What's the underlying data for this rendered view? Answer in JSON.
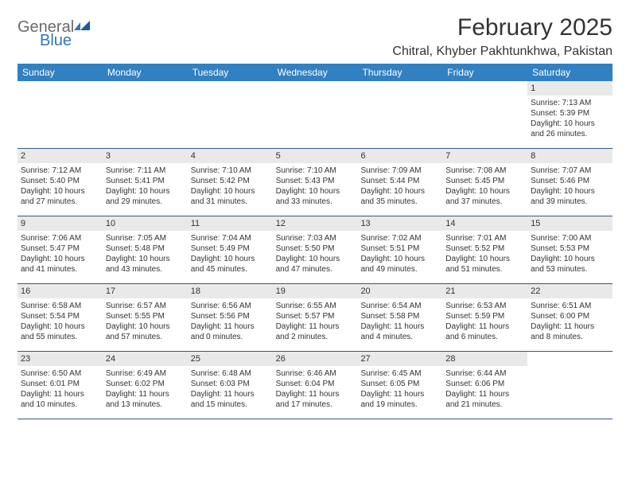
{
  "brand": {
    "name_part1": "General",
    "name_part2": "Blue"
  },
  "title": "February 2025",
  "location": "Chitral, Khyber Pakhtunkhwa, Pakistan",
  "colors": {
    "header_bg": "#3180c2",
    "header_text": "#ffffff",
    "daynum_bg": "#e9e9e9",
    "week_border": "#2f5b86",
    "text": "#333333",
    "logo_gray": "#6a6a6a",
    "logo_blue": "#2f77bb"
  },
  "days_of_week": [
    "Sunday",
    "Monday",
    "Tuesday",
    "Wednesday",
    "Thursday",
    "Friday",
    "Saturday"
  ],
  "weeks": [
    [
      {
        "n": "",
        "sr": "",
        "ss": "",
        "dl": ""
      },
      {
        "n": "",
        "sr": "",
        "ss": "",
        "dl": ""
      },
      {
        "n": "",
        "sr": "",
        "ss": "",
        "dl": ""
      },
      {
        "n": "",
        "sr": "",
        "ss": "",
        "dl": ""
      },
      {
        "n": "",
        "sr": "",
        "ss": "",
        "dl": ""
      },
      {
        "n": "",
        "sr": "",
        "ss": "",
        "dl": ""
      },
      {
        "n": "1",
        "sr": "Sunrise: 7:13 AM",
        "ss": "Sunset: 5:39 PM",
        "dl": "Daylight: 10 hours and 26 minutes."
      }
    ],
    [
      {
        "n": "2",
        "sr": "Sunrise: 7:12 AM",
        "ss": "Sunset: 5:40 PM",
        "dl": "Daylight: 10 hours and 27 minutes."
      },
      {
        "n": "3",
        "sr": "Sunrise: 7:11 AM",
        "ss": "Sunset: 5:41 PM",
        "dl": "Daylight: 10 hours and 29 minutes."
      },
      {
        "n": "4",
        "sr": "Sunrise: 7:10 AM",
        "ss": "Sunset: 5:42 PM",
        "dl": "Daylight: 10 hours and 31 minutes."
      },
      {
        "n": "5",
        "sr": "Sunrise: 7:10 AM",
        "ss": "Sunset: 5:43 PM",
        "dl": "Daylight: 10 hours and 33 minutes."
      },
      {
        "n": "6",
        "sr": "Sunrise: 7:09 AM",
        "ss": "Sunset: 5:44 PM",
        "dl": "Daylight: 10 hours and 35 minutes."
      },
      {
        "n": "7",
        "sr": "Sunrise: 7:08 AM",
        "ss": "Sunset: 5:45 PM",
        "dl": "Daylight: 10 hours and 37 minutes."
      },
      {
        "n": "8",
        "sr": "Sunrise: 7:07 AM",
        "ss": "Sunset: 5:46 PM",
        "dl": "Daylight: 10 hours and 39 minutes."
      }
    ],
    [
      {
        "n": "9",
        "sr": "Sunrise: 7:06 AM",
        "ss": "Sunset: 5:47 PM",
        "dl": "Daylight: 10 hours and 41 minutes."
      },
      {
        "n": "10",
        "sr": "Sunrise: 7:05 AM",
        "ss": "Sunset: 5:48 PM",
        "dl": "Daylight: 10 hours and 43 minutes."
      },
      {
        "n": "11",
        "sr": "Sunrise: 7:04 AM",
        "ss": "Sunset: 5:49 PM",
        "dl": "Daylight: 10 hours and 45 minutes."
      },
      {
        "n": "12",
        "sr": "Sunrise: 7:03 AM",
        "ss": "Sunset: 5:50 PM",
        "dl": "Daylight: 10 hours and 47 minutes."
      },
      {
        "n": "13",
        "sr": "Sunrise: 7:02 AM",
        "ss": "Sunset: 5:51 PM",
        "dl": "Daylight: 10 hours and 49 minutes."
      },
      {
        "n": "14",
        "sr": "Sunrise: 7:01 AM",
        "ss": "Sunset: 5:52 PM",
        "dl": "Daylight: 10 hours and 51 minutes."
      },
      {
        "n": "15",
        "sr": "Sunrise: 7:00 AM",
        "ss": "Sunset: 5:53 PM",
        "dl": "Daylight: 10 hours and 53 minutes."
      }
    ],
    [
      {
        "n": "16",
        "sr": "Sunrise: 6:58 AM",
        "ss": "Sunset: 5:54 PM",
        "dl": "Daylight: 10 hours and 55 minutes."
      },
      {
        "n": "17",
        "sr": "Sunrise: 6:57 AM",
        "ss": "Sunset: 5:55 PM",
        "dl": "Daylight: 10 hours and 57 minutes."
      },
      {
        "n": "18",
        "sr": "Sunrise: 6:56 AM",
        "ss": "Sunset: 5:56 PM",
        "dl": "Daylight: 11 hours and 0 minutes."
      },
      {
        "n": "19",
        "sr": "Sunrise: 6:55 AM",
        "ss": "Sunset: 5:57 PM",
        "dl": "Daylight: 11 hours and 2 minutes."
      },
      {
        "n": "20",
        "sr": "Sunrise: 6:54 AM",
        "ss": "Sunset: 5:58 PM",
        "dl": "Daylight: 11 hours and 4 minutes."
      },
      {
        "n": "21",
        "sr": "Sunrise: 6:53 AM",
        "ss": "Sunset: 5:59 PM",
        "dl": "Daylight: 11 hours and 6 minutes."
      },
      {
        "n": "22",
        "sr": "Sunrise: 6:51 AM",
        "ss": "Sunset: 6:00 PM",
        "dl": "Daylight: 11 hours and 8 minutes."
      }
    ],
    [
      {
        "n": "23",
        "sr": "Sunrise: 6:50 AM",
        "ss": "Sunset: 6:01 PM",
        "dl": "Daylight: 11 hours and 10 minutes."
      },
      {
        "n": "24",
        "sr": "Sunrise: 6:49 AM",
        "ss": "Sunset: 6:02 PM",
        "dl": "Daylight: 11 hours and 13 minutes."
      },
      {
        "n": "25",
        "sr": "Sunrise: 6:48 AM",
        "ss": "Sunset: 6:03 PM",
        "dl": "Daylight: 11 hours and 15 minutes."
      },
      {
        "n": "26",
        "sr": "Sunrise: 6:46 AM",
        "ss": "Sunset: 6:04 PM",
        "dl": "Daylight: 11 hours and 17 minutes."
      },
      {
        "n": "27",
        "sr": "Sunrise: 6:45 AM",
        "ss": "Sunset: 6:05 PM",
        "dl": "Daylight: 11 hours and 19 minutes."
      },
      {
        "n": "28",
        "sr": "Sunrise: 6:44 AM",
        "ss": "Sunset: 6:06 PM",
        "dl": "Daylight: 11 hours and 21 minutes."
      },
      {
        "n": "",
        "sr": "",
        "ss": "",
        "dl": ""
      }
    ]
  ]
}
